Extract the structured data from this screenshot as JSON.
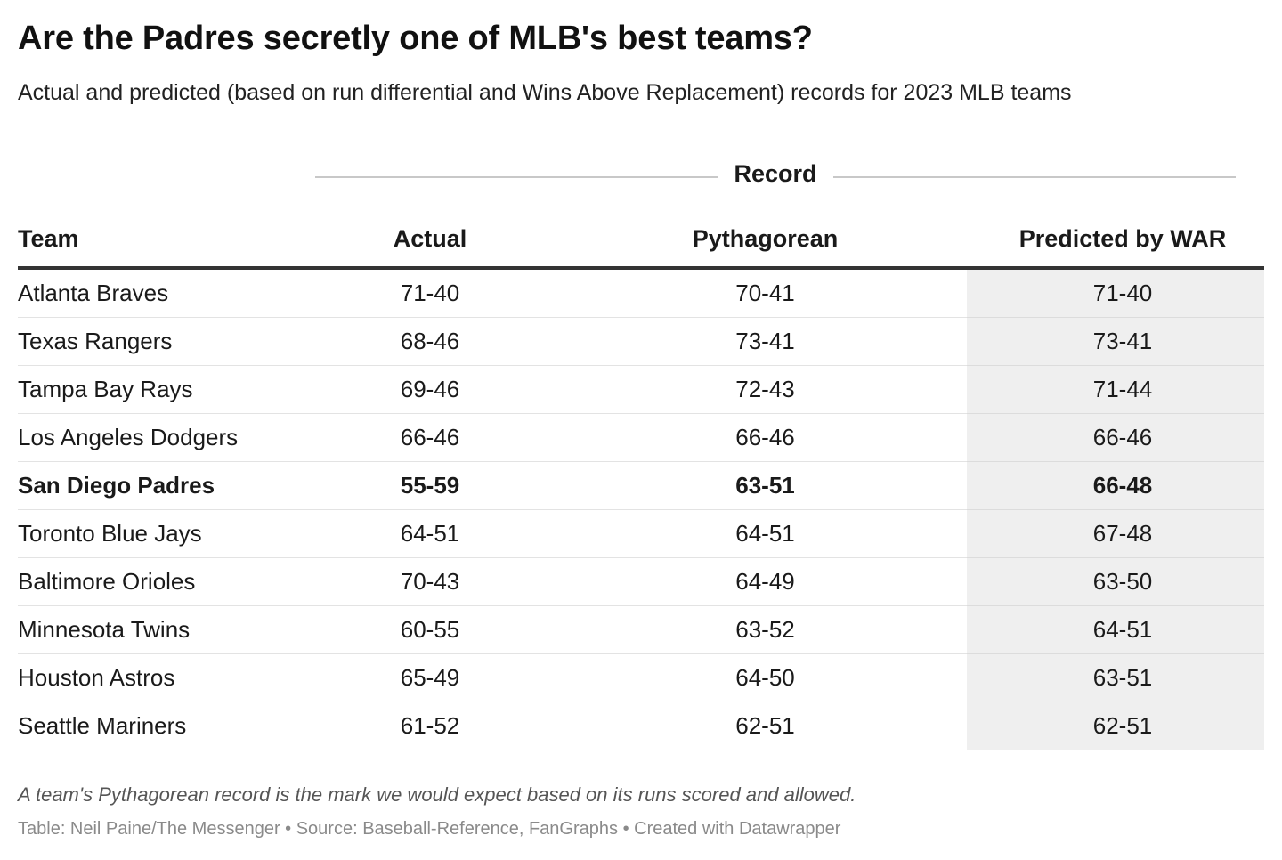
{
  "title": "Are the Padres secretly one of MLB's best teams?",
  "subtitle": "Actual and predicted (based on run differential and Wins Above Replacement) records for 2023 MLB teams",
  "group_header": "Record",
  "columns": {
    "team": "Team",
    "actual": "Actual",
    "pythagorean": "Pythagorean",
    "war": "Predicted by WAR"
  },
  "colors": {
    "highlight_column_bg": "#efefef",
    "header_rule": "#333333",
    "row_divider": "#e3e3e3",
    "note_text": "#555555",
    "source_text": "#8a8a8a"
  },
  "rows": [
    {
      "team": "Atlanta Braves",
      "actual": "71-40",
      "pythagorean": "70-41",
      "war": "71-40"
    },
    {
      "team": "Texas Rangers",
      "actual": "68-46",
      "pythagorean": "73-41",
      "war": "73-41"
    },
    {
      "team": "Tampa Bay Rays",
      "actual": "69-46",
      "pythagorean": "72-43",
      "war": "71-44"
    },
    {
      "team": "Los Angeles Dodgers",
      "actual": "66-46",
      "pythagorean": "66-46",
      "war": "66-46"
    },
    {
      "team": "San Diego Padres",
      "actual": "55-59",
      "pythagorean": "63-51",
      "war": "66-48",
      "bold": true
    },
    {
      "team": "Toronto Blue Jays",
      "actual": "64-51",
      "pythagorean": "64-51",
      "war": "67-48"
    },
    {
      "team": "Baltimore Orioles",
      "actual": "70-43",
      "pythagorean": "64-49",
      "war": "63-50"
    },
    {
      "team": "Minnesota Twins",
      "actual": "60-55",
      "pythagorean": "63-52",
      "war": "64-51"
    },
    {
      "team": "Houston Astros",
      "actual": "65-49",
      "pythagorean": "64-50",
      "war": "63-51"
    },
    {
      "team": "Seattle Mariners",
      "actual": "61-52",
      "pythagorean": "62-51",
      "war": "62-51"
    }
  ],
  "footnote": "A team's Pythagorean record is the mark we would expect based on its runs scored and allowed.",
  "source_line": "Table: Neil Paine/The Messenger • Source: Baseball-Reference, FanGraphs • Created with Datawrapper",
  "chart_data": {
    "type": "table",
    "title": "Are the Padres secretly one of MLB's best teams?",
    "subtitle": "Actual and predicted (based on run differential and Wins Above Replacement) records for 2023 MLB teams",
    "column_group": "Record",
    "columns": [
      "Team",
      "Actual",
      "Pythagorean",
      "Predicted by WAR"
    ],
    "rows": [
      [
        "Atlanta Braves",
        "71-40",
        "70-41",
        "71-40"
      ],
      [
        "Texas Rangers",
        "68-46",
        "73-41",
        "73-41"
      ],
      [
        "Tampa Bay Rays",
        "69-46",
        "72-43",
        "71-44"
      ],
      [
        "Los Angeles Dodgers",
        "66-46",
        "66-46",
        "66-46"
      ],
      [
        "San Diego Padres",
        "55-59",
        "63-51",
        "66-48"
      ],
      [
        "Toronto Blue Jays",
        "64-51",
        "64-51",
        "67-48"
      ],
      [
        "Baltimore Orioles",
        "70-43",
        "64-49",
        "63-50"
      ],
      [
        "Minnesota Twins",
        "60-55",
        "63-52",
        "64-51"
      ],
      [
        "Houston Astros",
        "65-49",
        "64-50",
        "63-51"
      ],
      [
        "Seattle Mariners",
        "61-52",
        "62-51",
        "62-51"
      ]
    ],
    "highlighted_row": "San Diego Padres",
    "shaded_column": "Predicted by WAR"
  }
}
